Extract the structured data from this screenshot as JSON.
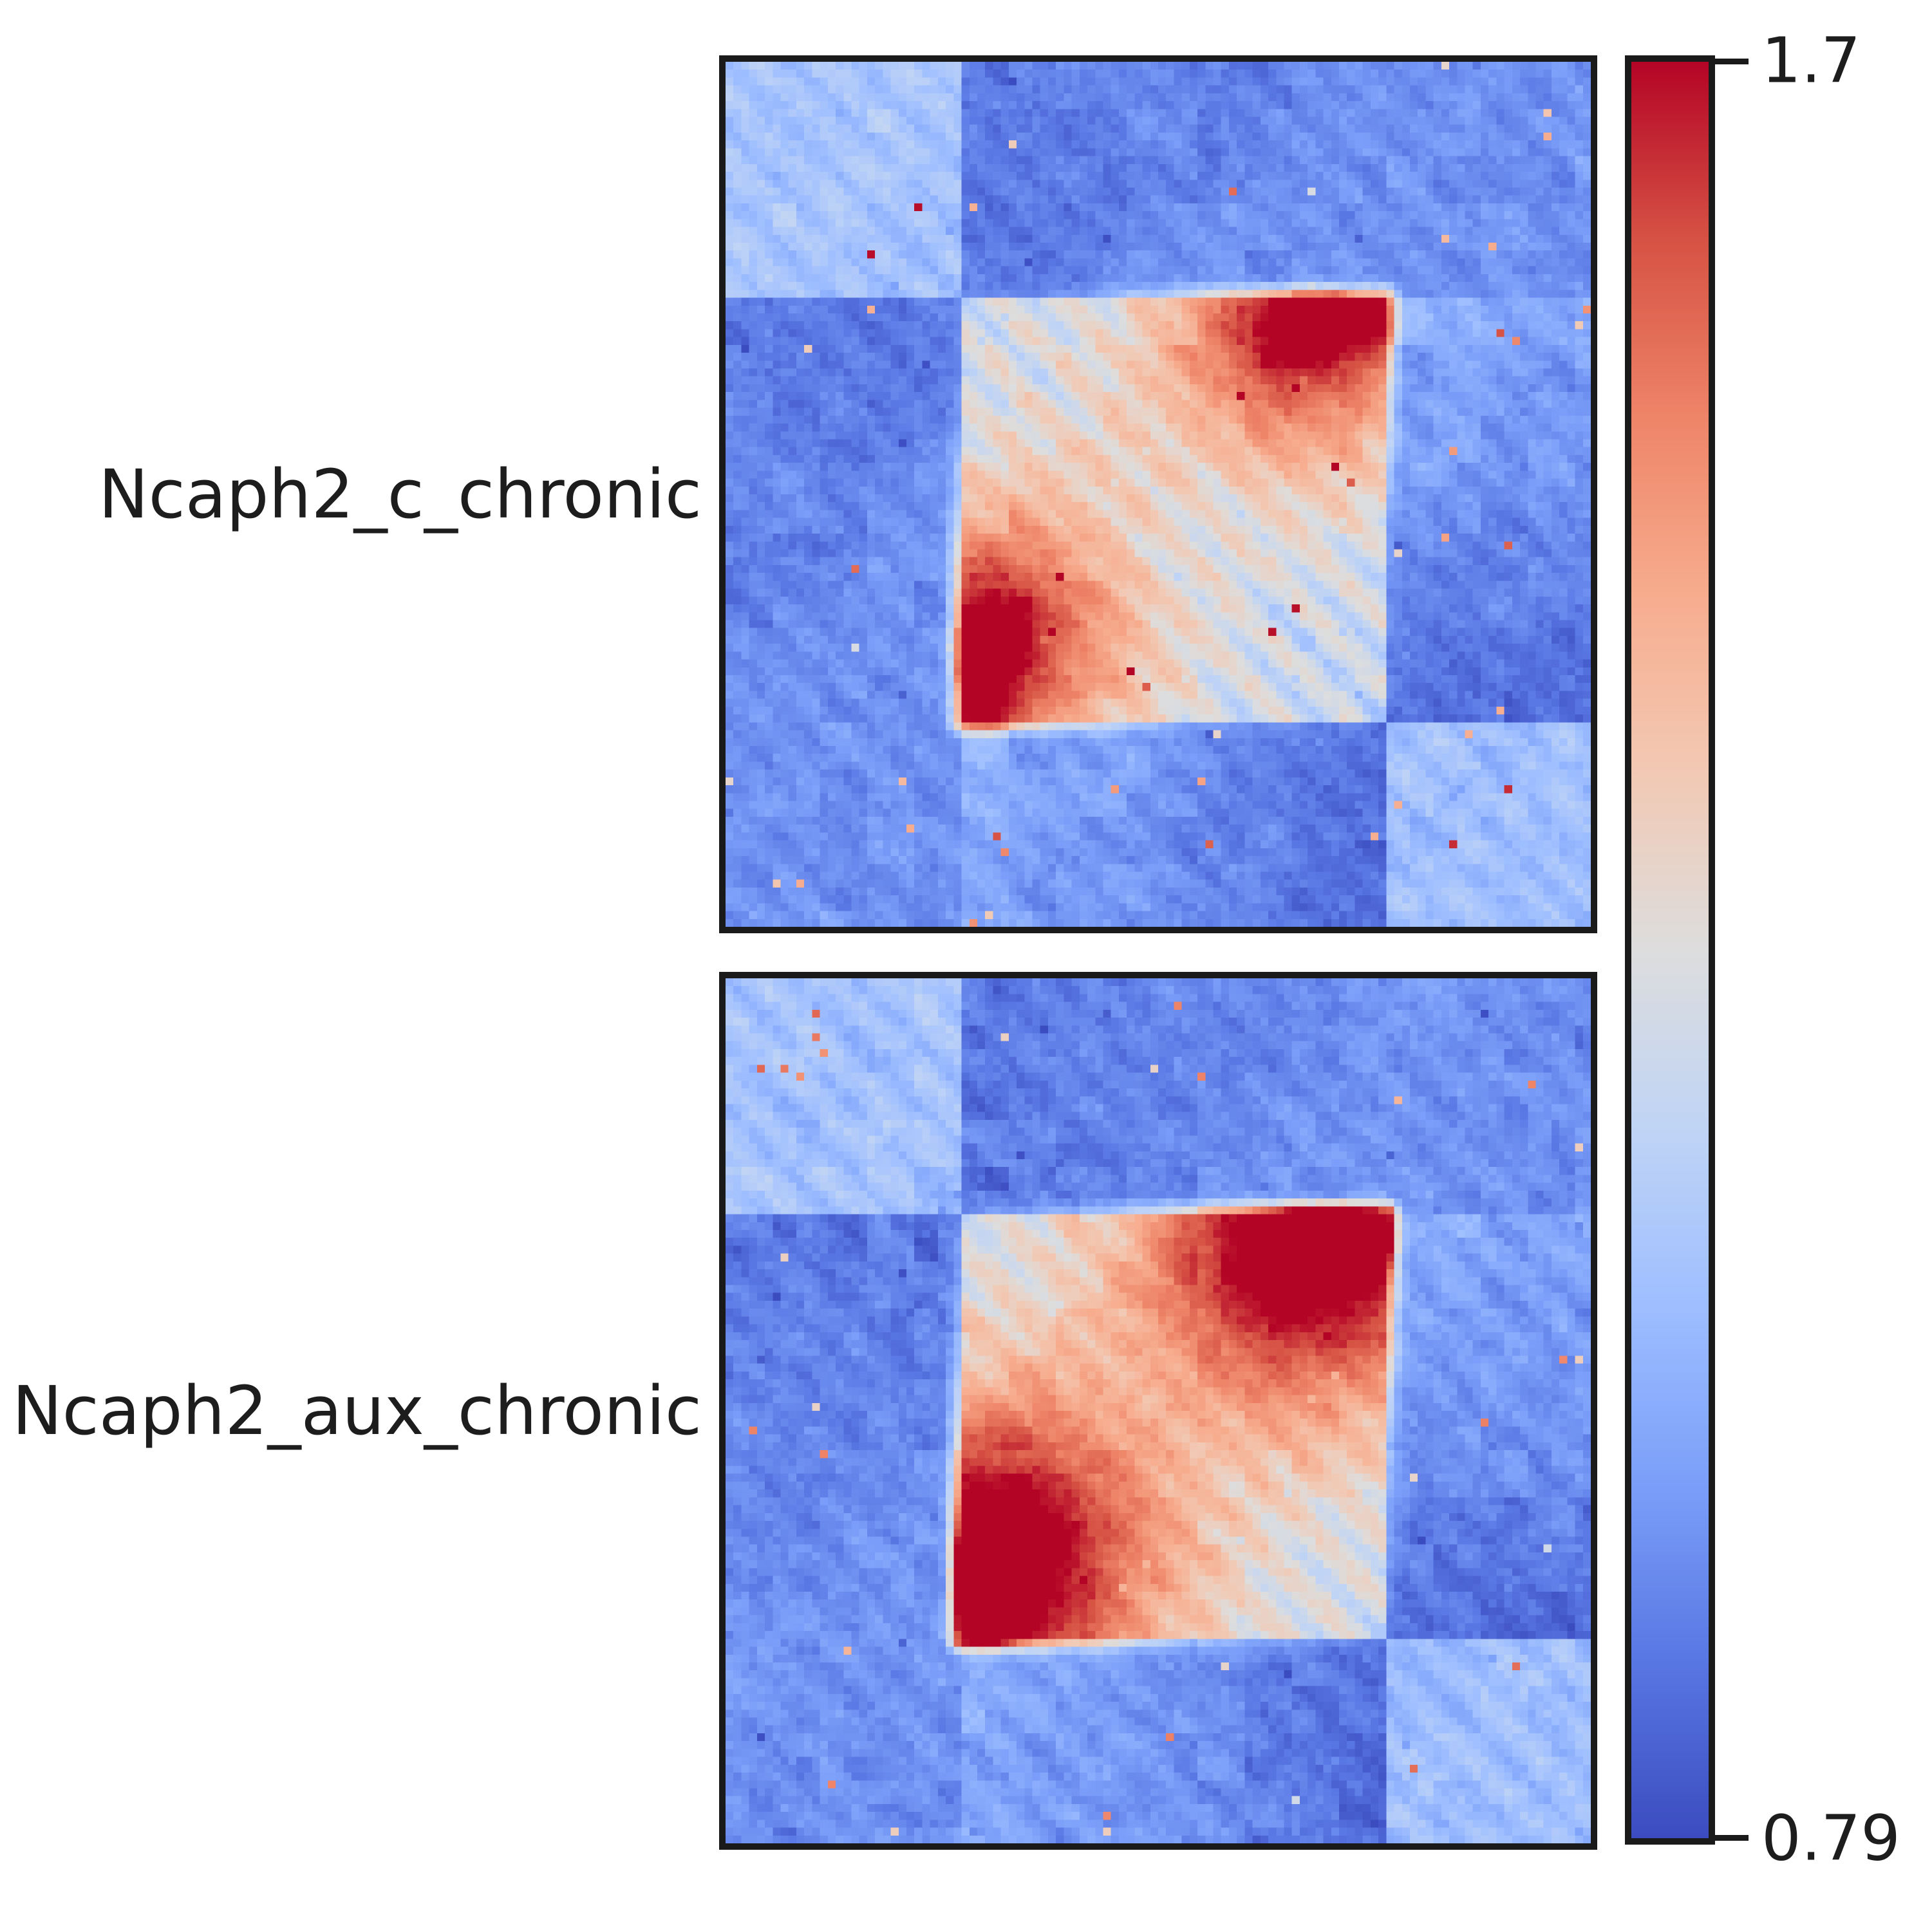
{
  "figure": {
    "background": "#ffffff",
    "border_color": "#1a1a1a",
    "text_color": "#1d1d1d"
  },
  "colorbar": {
    "tick_max": "1.7",
    "tick_min": "0.79",
    "vmin": 0.79,
    "vmax": 1.7,
    "colormap": "coolwarm",
    "stops": [
      "#3b4cc0",
      "#5977e3",
      "#7b9ff9",
      "#9ebeff",
      "#c0d4f5",
      "#dddddd",
      "#f2c9b4",
      "#f7ac8e",
      "#ee8468",
      "#d65244",
      "#b40426"
    ]
  },
  "chart_data": [
    {
      "type": "heatmap",
      "title": "Ncaph2_c_chronic",
      "grid_size": 110,
      "vmin": 0.79,
      "vmax": 1.7,
      "domain_start": 0.27,
      "domain_end": 0.765,
      "region_values": {
        "flank1_flank1": 1.115,
        "flank2_flank2": 1.1,
        "flank1_flank2": 0.96,
        "flank_domain_near": 0.905,
        "flank_domain_far": 0.965,
        "domain_flank2_near": 1.04,
        "domain_flank2_far": 0.875,
        "domain_interior": 1.235
      },
      "stripes": {
        "spacing": 0.076,
        "width": 0.019,
        "amplitude": 0.16
      },
      "loops": [
        {
          "u": 0.31,
          "v": 0.665,
          "broad_sigma": 0.105,
          "broad_amp": 0.33,
          "wash_sigma": 0.18,
          "wash_amp": 0.1,
          "tight_sigma": 0.028,
          "tight_amp": 0.22,
          "streak_len": 0.05,
          "streak_sigma": 0.007,
          "streak_amp": 0.5,
          "stretch_u": 0.295,
          "stretch_v": 0.73,
          "stretch_su": 0.022,
          "stretch_sv": 0.05,
          "stretch_amp": 0.26
        }
      ],
      "noise": {
        "fine": 0.038,
        "coarse": 0.032,
        "block": 0.028,
        "speckle_prob": 0.0035,
        "seed": 11
      }
    },
    {
      "type": "heatmap",
      "title": "Ncaph2_aux_chronic",
      "grid_size": 110,
      "vmin": 0.79,
      "vmax": 1.7,
      "domain_start": 0.27,
      "domain_end": 0.765,
      "region_values": {
        "flank1_flank1": 1.115,
        "flank2_flank2": 1.1,
        "flank1_flank2": 0.96,
        "flank_domain_near": 0.905,
        "flank_domain_far": 0.965,
        "domain_flank2_near": 1.04,
        "domain_flank2_far": 0.875,
        "domain_interior": 1.235
      },
      "stripes": {
        "spacing": 0.076,
        "width": 0.019,
        "amplitude": 0.16
      },
      "loops": [
        {
          "u": 0.305,
          "v": 0.675,
          "broad_sigma": 0.125,
          "broad_amp": 0.42,
          "wash_sigma": 0.21,
          "wash_amp": 0.14,
          "tight_sigma": 0.034,
          "tight_amp": 0.3,
          "streak_len": 0.055,
          "streak_sigma": 0.007,
          "streak_amp": 0.52,
          "stretch_u": 0.295,
          "stretch_v": 0.735,
          "stretch_su": 0.026,
          "stretch_sv": 0.055,
          "stretch_amp": 0.34
        }
      ],
      "noise": {
        "fine": 0.038,
        "coarse": 0.032,
        "block": 0.028,
        "speckle_prob": 0.0035,
        "seed": 23
      }
    }
  ]
}
